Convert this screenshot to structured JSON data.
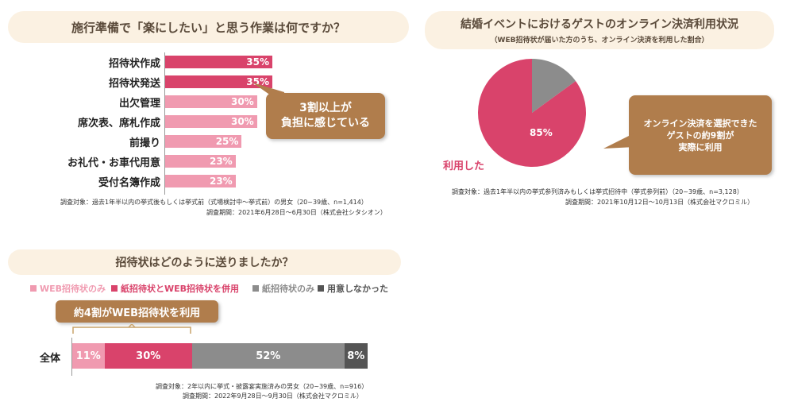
{
  "chart_data": [
    {
      "type": "bar",
      "title": "施行準備で「楽にしたい」と思う作業は何ですか？",
      "categories": [
        "招待状作成",
        "招待状発送",
        "出欠管理",
        "席次表、席札作成",
        "前撮り",
        "お礼代・お車代用意",
        "受付名簿作成"
      ],
      "values": [
        35,
        35,
        30,
        30,
        25,
        23,
        23
      ],
      "value_labels": [
        "35%",
        "35%",
        "30%",
        "30%",
        "25%",
        "23%",
        "23%"
      ],
      "colors": [
        "#d9436b",
        "#d9436b",
        "#f09ab0",
        "#f09ab0",
        "#f09ab0",
        "#f09ab0",
        "#f09ab0"
      ],
      "callout": [
        "3割以上が",
        "負担に感じている"
      ],
      "notes": [
        "調査対象：過去1年半以内の挙式後もしくは挙式前（式場検討中～挙式前）の男女（20~39歳、n=1,414）",
        "調査期間：2021年6月28日～6月30日（株式会社シタシオン）"
      ]
    },
    {
      "type": "pie",
      "title": "結婚イベントにおけるゲストのオンライン決済利用状況",
      "subtitle": "（WEB招待状が届いた方のうち、オンライン決済を利用した割合）",
      "slices": [
        {
          "label": "利用した",
          "value": 85,
          "value_label": "85%",
          "color": "#d9436b"
        },
        {
          "label": "",
          "value": 15,
          "value_label": "",
          "color": "#8c8c8c"
        }
      ],
      "callout": [
        "オンライン決済を選択できた",
        "ゲストの約9割が",
        "実際に利用"
      ],
      "notes": [
        "調査対象：過去1年半以内の挙式参列済みもしくは挙式招待中（挙式参列前）（20~39歳、n=3,128）",
        "調査期間：2021年10月12日～10月13日（株式会社マクロミル）"
      ]
    },
    {
      "type": "bar",
      "stacked": true,
      "title": "招待状はどのように送りましたか？",
      "categories": [
        "全体"
      ],
      "series": [
        {
          "name": "WEB招待状のみ",
          "values": [
            11
          ],
          "value_label": "11%",
          "color": "#f09ab0"
        },
        {
          "name": "紙招待状とWEB招待状を併用",
          "values": [
            30
          ],
          "value_label": "30%",
          "color": "#d9436b"
        },
        {
          "name": "紙招待状のみ",
          "values": [
            52
          ],
          "value_label": "52%",
          "color": "#8c8c8c"
        },
        {
          "name": "用意しなかった",
          "values": [
            8
          ],
          "value_label": "8%",
          "color": "#555555"
        }
      ],
      "callout": [
        "約4割がWEB招待状を利用"
      ],
      "notes": [
        "調査対象：2年以内に挙式・披露宴実施済みの男女（20~39歳、n=916）",
        "調査期間：2022年9月28日～9月30日（株式会社マクロミル）"
      ]
    }
  ]
}
